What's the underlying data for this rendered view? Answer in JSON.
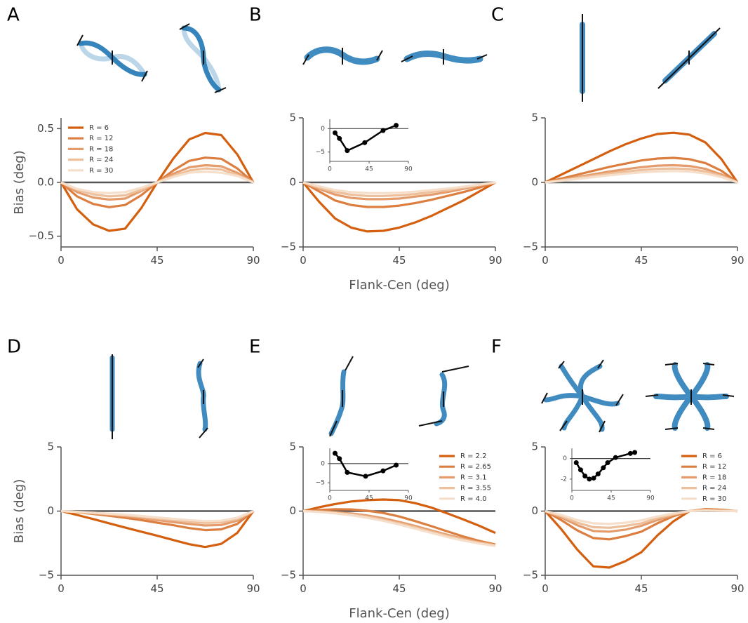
{
  "chart_data": [
    {
      "type": "line",
      "label": "A",
      "ylabel": "Bias (deg)",
      "legend_loc": "upper left",
      "hline": 0,
      "x": [
        0,
        7.5,
        15,
        22.5,
        30,
        37.5,
        45,
        52.5,
        60,
        67.5,
        75,
        82.5,
        90
      ],
      "xlim": [
        0,
        90
      ],
      "xticks": [
        0,
        45,
        90
      ],
      "ylim": [
        -0.6,
        0.6
      ],
      "yticks": [
        {
          "value": -0.5,
          "label": "−0.5"
        },
        {
          "value": 0,
          "label": "0.0"
        },
        0.5
      ],
      "series": [
        {
          "name": "R = 6",
          "color": "#d35f0f",
          "values": [
            0,
            -0.25,
            -0.39,
            -0.45,
            -0.43,
            -0.24,
            0,
            0.22,
            0.4,
            0.46,
            0.44,
            0.26,
            0
          ]
        },
        {
          "name": "R = 12",
          "color": "#dc7e3f",
          "values": [
            0,
            -0.13,
            -0.2,
            -0.23,
            -0.21,
            -0.12,
            0,
            0.11,
            0.2,
            0.23,
            0.22,
            0.13,
            0
          ]
        },
        {
          "name": "R = 18",
          "color": "#e49c6c",
          "values": [
            0,
            -0.09,
            -0.14,
            -0.16,
            -0.15,
            -0.08,
            0,
            0.08,
            0.14,
            0.16,
            0.15,
            0.09,
            0
          ]
        },
        {
          "name": "R = 24",
          "color": "#edbf9b",
          "values": [
            0,
            -0.07,
            -0.11,
            -0.13,
            -0.12,
            -0.07,
            0,
            0.06,
            0.11,
            0.13,
            0.12,
            0.07,
            0
          ]
        },
        {
          "name": "R = 30",
          "color": "#f6dfca",
          "values": [
            0,
            -0.06,
            -0.09,
            -0.1,
            -0.09,
            -0.05,
            0,
            0.05,
            0.09,
            0.1,
            0.09,
            0.06,
            0
          ]
        }
      ]
    },
    {
      "type": "line",
      "label": "B",
      "xlabel": "Flank-Cen (deg)",
      "hline": 0,
      "x": [
        0,
        7.5,
        15,
        22.5,
        30,
        37.5,
        45,
        52.5,
        60,
        67.5,
        75,
        82.5,
        90
      ],
      "xlim": [
        0,
        90
      ],
      "xticks": [
        0,
        45,
        90
      ],
      "ylim": [
        -5,
        5
      ],
      "yticks": [
        {
          "value": -5,
          "label": "−5"
        },
        0,
        5
      ],
      "series": [
        {
          "color": "#d35f0f",
          "values": [
            0,
            -1.5,
            -2.8,
            -3.5,
            -3.8,
            -3.75,
            -3.5,
            -3.1,
            -2.6,
            -2.0,
            -1.4,
            -0.7,
            0
          ]
        },
        {
          "color": "#dc7e3f",
          "values": [
            0,
            -0.7,
            -1.4,
            -1.75,
            -1.9,
            -1.9,
            -1.8,
            -1.6,
            -1.35,
            -1.05,
            -0.75,
            -0.4,
            0
          ]
        },
        {
          "color": "#e49c6c",
          "values": [
            0,
            -0.5,
            -0.95,
            -1.2,
            -1.3,
            -1.3,
            -1.25,
            -1.1,
            -0.95,
            -0.75,
            -0.5,
            -0.25,
            0
          ]
        },
        {
          "color": "#edbf9b",
          "values": [
            0,
            -0.4,
            -0.75,
            -0.95,
            -1.05,
            -1.05,
            -1.0,
            -0.9,
            -0.75,
            -0.6,
            -0.4,
            -0.2,
            0
          ]
        },
        {
          "color": "#f6dfca",
          "values": [
            0,
            -0.3,
            -0.6,
            -0.75,
            -0.82,
            -0.83,
            -0.8,
            -0.72,
            -0.6,
            -0.48,
            -0.33,
            -0.17,
            0
          ]
        }
      ],
      "inset": {
        "type": "line",
        "color": "#000000",
        "hline": 0,
        "x": [
          6,
          11,
          20,
          40,
          61,
          76
        ],
        "values": [
          -0.9,
          -2.1,
          -4.7,
          -3.0,
          -0.4,
          0.7
        ],
        "xlim": [
          0,
          90
        ],
        "xticks": [
          0,
          45,
          90
        ],
        "ylim": [
          -7,
          2
        ],
        "yticks": [
          {
            "value": -5,
            "label": "−5"
          },
          0
        ]
      }
    },
    {
      "type": "line",
      "label": "C",
      "hline": 0,
      "x": [
        0,
        7.5,
        15,
        22.5,
        30,
        37.5,
        45,
        52.5,
        60,
        67.5,
        75,
        82.5,
        90
      ],
      "xlim": [
        0,
        90
      ],
      "xticks": [
        0,
        45,
        90
      ],
      "ylim": [
        -5,
        5
      ],
      "yticks": [
        {
          "value": -5,
          "label": "−5"
        },
        0,
        5
      ],
      "series": [
        {
          "color": "#d35f0f",
          "values": [
            0,
            0.6,
            1.2,
            1.8,
            2.4,
            2.95,
            3.4,
            3.75,
            3.85,
            3.7,
            3.1,
            1.8,
            0
          ]
        },
        {
          "color": "#dc7e3f",
          "values": [
            0,
            0.3,
            0.6,
            0.9,
            1.2,
            1.45,
            1.7,
            1.85,
            1.9,
            1.8,
            1.5,
            0.9,
            0
          ]
        },
        {
          "color": "#e49c6c",
          "values": [
            0,
            0.2,
            0.42,
            0.63,
            0.84,
            1.02,
            1.18,
            1.3,
            1.33,
            1.27,
            1.05,
            0.62,
            0
          ]
        },
        {
          "color": "#edbf9b",
          "values": [
            0,
            0.16,
            0.34,
            0.51,
            0.68,
            0.83,
            0.96,
            1.05,
            1.08,
            1.03,
            0.85,
            0.5,
            0
          ]
        },
        {
          "color": "#f6dfca",
          "values": [
            0,
            0.13,
            0.27,
            0.41,
            0.55,
            0.67,
            0.78,
            0.85,
            0.88,
            0.84,
            0.69,
            0.41,
            0
          ]
        }
      ]
    },
    {
      "type": "line",
      "label": "D",
      "ylabel": "Bias (deg)",
      "hline": 0,
      "x": [
        0,
        7.5,
        15,
        22.5,
        30,
        37.5,
        45,
        52.5,
        60,
        67.5,
        75,
        82.5,
        90
      ],
      "xlim": [
        0,
        90
      ],
      "xticks": [
        0,
        45,
        90
      ],
      "ylim": [
        -5,
        5
      ],
      "yticks": [
        {
          "value": -5,
          "label": "−5"
        },
        0,
        5
      ],
      "series": [
        {
          "color": "#d35f0f",
          "values": [
            0,
            -0.3,
            -0.62,
            -0.95,
            -1.28,
            -1.6,
            -1.92,
            -2.25,
            -2.58,
            -2.8,
            -2.55,
            -1.7,
            0
          ]
        },
        {
          "color": "#dc7e3f",
          "values": [
            0,
            -0.1,
            -0.22,
            -0.36,
            -0.52,
            -0.7,
            -0.9,
            -1.1,
            -1.32,
            -1.48,
            -1.42,
            -1.0,
            0
          ]
        },
        {
          "color": "#e49c6c",
          "values": [
            0,
            -0.08,
            -0.17,
            -0.28,
            -0.4,
            -0.54,
            -0.7,
            -0.85,
            -1.0,
            -1.12,
            -1.08,
            -0.75,
            0
          ]
        },
        {
          "color": "#edbf9b",
          "values": [
            0,
            -0.07,
            -0.14,
            -0.23,
            -0.33,
            -0.45,
            -0.58,
            -0.7,
            -0.82,
            -0.92,
            -0.88,
            -0.62,
            0
          ]
        },
        {
          "color": "#f6dfca",
          "values": [
            0,
            -0.06,
            -0.12,
            -0.2,
            -0.28,
            -0.38,
            -0.49,
            -0.6,
            -0.7,
            -0.78,
            -0.75,
            -0.52,
            0
          ]
        }
      ]
    },
    {
      "type": "line",
      "label": "E",
      "xlabel": "Flank-Cen (deg)",
      "legend_loc": "upper right",
      "hline": 0,
      "x": [
        0,
        7.5,
        15,
        22.5,
        30,
        37.5,
        45,
        52.5,
        60,
        67.5,
        75,
        82.5,
        90
      ],
      "xlim": [
        0,
        90
      ],
      "xticks": [
        0,
        45,
        90
      ],
      "ylim": [
        -5,
        5
      ],
      "yticks": [
        {
          "value": -5,
          "label": "−5"
        },
        0,
        5
      ],
      "series": [
        {
          "name": "R = 2.2",
          "color": "#d35f0f",
          "values": [
            0,
            0.3,
            0.55,
            0.75,
            0.85,
            0.9,
            0.85,
            0.62,
            0.28,
            -0.18,
            -0.65,
            -1.15,
            -1.7
          ]
        },
        {
          "name": "R = 2.65",
          "color": "#dc7e3f",
          "values": [
            0,
            0.08,
            0.14,
            0.13,
            0.03,
            -0.15,
            -0.42,
            -0.78,
            -1.17,
            -1.58,
            -1.98,
            -2.32,
            -2.6
          ]
        },
        {
          "name": "R = 3.1",
          "color": "#e49c6c",
          "values": [
            0,
            -0.02,
            -0.08,
            -0.18,
            -0.34,
            -0.56,
            -0.84,
            -1.16,
            -1.5,
            -1.84,
            -2.15,
            -2.42,
            -2.65
          ]
        },
        {
          "name": "R = 3.55",
          "color": "#edbf9b",
          "values": [
            0,
            -0.05,
            -0.13,
            -0.26,
            -0.44,
            -0.67,
            -0.95,
            -1.27,
            -1.6,
            -1.93,
            -2.22,
            -2.47,
            -2.68
          ]
        },
        {
          "name": "R = 4.0",
          "color": "#f6dfca",
          "values": [
            0,
            -0.07,
            -0.18,
            -0.33,
            -0.52,
            -0.76,
            -1.05,
            -1.37,
            -1.7,
            -2.02,
            -2.3,
            -2.53,
            -2.72
          ]
        }
      ],
      "inset": {
        "type": "line",
        "color": "#000000",
        "hline": 0,
        "x": [
          6,
          11,
          20,
          41,
          61,
          76
        ],
        "values": [
          2.7,
          1.3,
          -2.3,
          -3.3,
          -1.9,
          -0.4
        ],
        "xlim": [
          0,
          90
        ],
        "xticks": [
          0,
          45,
          90
        ],
        "ylim": [
          -7,
          4
        ],
        "yticks": [
          {
            "value": -5,
            "label": "−5"
          },
          0
        ]
      }
    },
    {
      "type": "line",
      "label": "F",
      "legend_loc": "upper right",
      "hline": 0,
      "x": [
        0,
        7.5,
        15,
        22.5,
        30,
        37.5,
        45,
        52.5,
        60,
        67.5,
        75,
        82.5,
        90
      ],
      "xlim": [
        0,
        90
      ],
      "xticks": [
        0,
        45,
        90
      ],
      "ylim": [
        -5,
        5
      ],
      "yticks": [
        {
          "value": -5,
          "label": "−5"
        },
        0,
        5
      ],
      "series": [
        {
          "name": "R = 6",
          "color": "#d35f0f",
          "values": [
            0,
            -1.4,
            -3.0,
            -4.3,
            -4.4,
            -3.9,
            -3.2,
            -1.9,
            -0.8,
            0,
            0.15,
            0.1,
            0
          ]
        },
        {
          "name": "R = 12",
          "color": "#dc7e3f",
          "values": [
            0,
            -0.7,
            -1.5,
            -2.1,
            -2.2,
            -1.95,
            -1.6,
            -0.95,
            -0.4,
            0,
            0.1,
            0.05,
            0
          ]
        },
        {
          "name": "R = 18",
          "color": "#e49c6c",
          "values": [
            0,
            -0.5,
            -1.1,
            -1.55,
            -1.6,
            -1.45,
            -1.15,
            -0.7,
            -0.3,
            0,
            0.08,
            0.04,
            0
          ]
        },
        {
          "name": "R = 24",
          "color": "#edbf9b",
          "values": [
            0,
            -0.4,
            -0.9,
            -1.25,
            -1.3,
            -1.15,
            -0.95,
            -0.55,
            -0.25,
            0,
            0.06,
            0.03,
            0
          ]
        },
        {
          "name": "R = 30",
          "color": "#f6dfca",
          "values": [
            0,
            -0.3,
            -0.7,
            -0.95,
            -1.0,
            -0.9,
            -0.72,
            -0.42,
            -0.18,
            0,
            0.05,
            0.02,
            0
          ]
        }
      ],
      "inset": {
        "type": "line",
        "color": "#000000",
        "hline": 0,
        "x": [
          5,
          10,
          15,
          20,
          25,
          30,
          36,
          41,
          50,
          67,
          72
        ],
        "values": [
          -0.4,
          -1.1,
          -1.7,
          -2.0,
          -1.9,
          -1.5,
          -0.9,
          -0.4,
          0.1,
          0.5,
          0.6
        ],
        "xlim": [
          0,
          90
        ],
        "xticks": [
          0,
          45,
          90
        ],
        "ylim": [
          -3.1,
          1
        ],
        "yticks": [
          -2,
          0
        ]
      }
    }
  ]
}
